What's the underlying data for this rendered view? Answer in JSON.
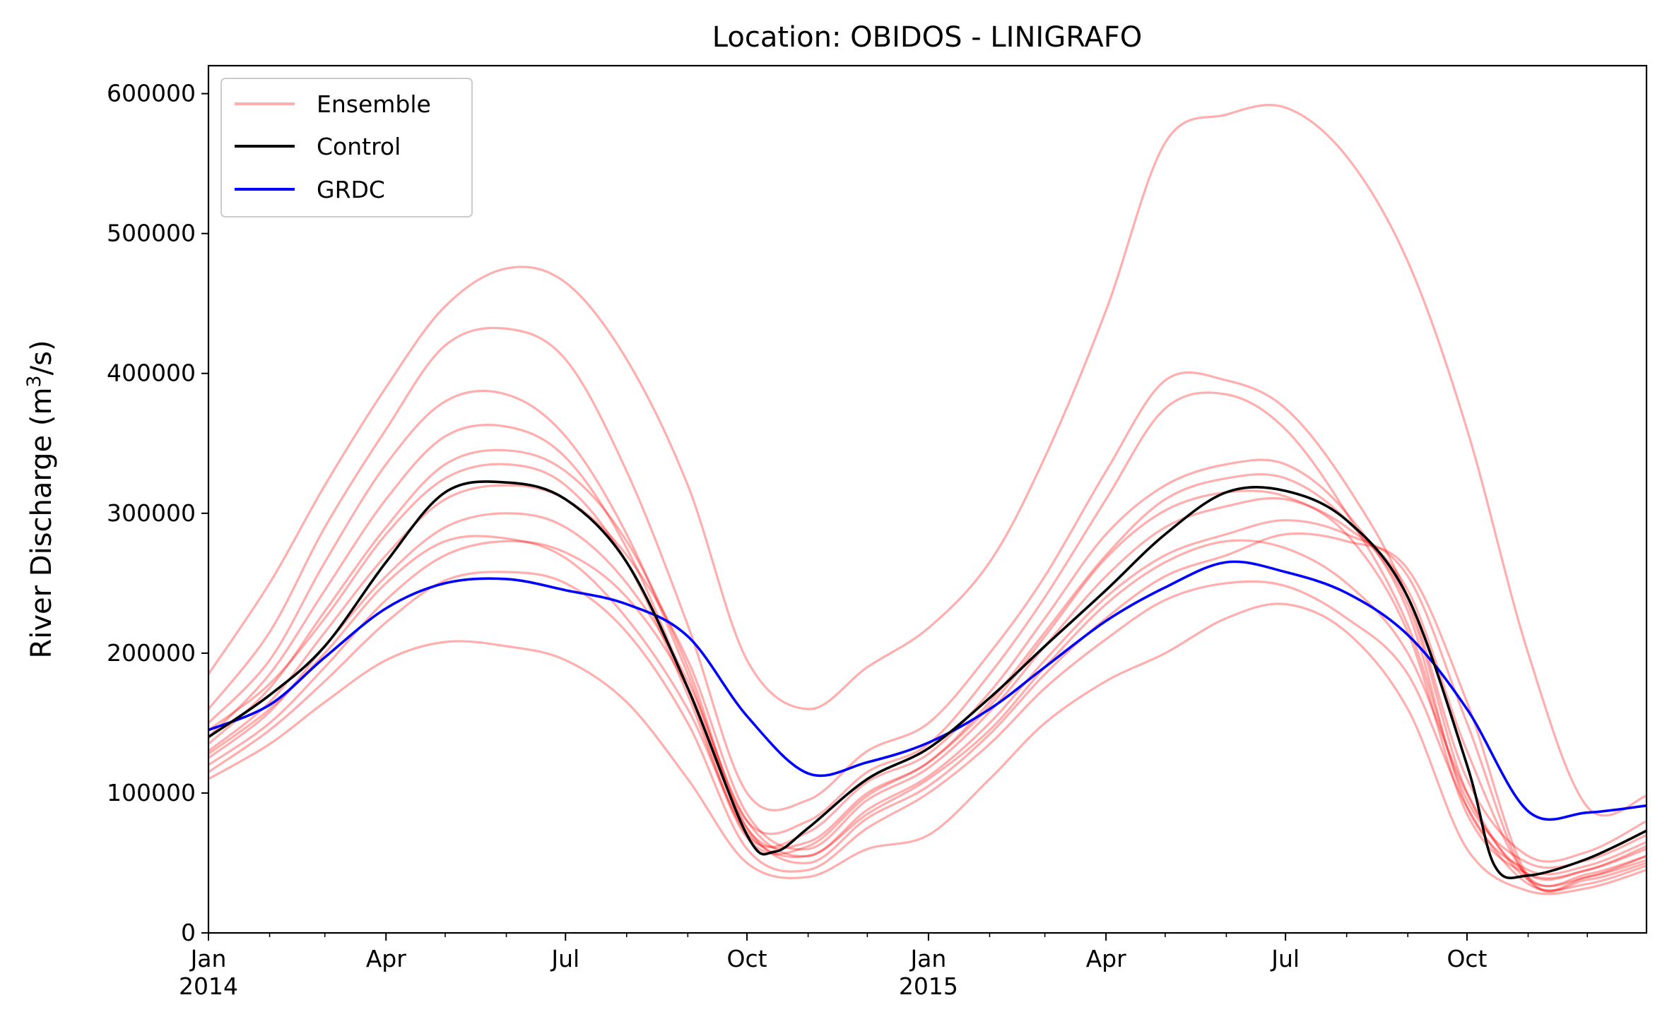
{
  "chart_data": {
    "type": "line",
    "title": "Location: OBIDOS - LINIGRAFO",
    "ylabel_main": "River Discharge (m",
    "ylabel_sup": "3",
    "ylabel_end": "/s)",
    "xlabel": "",
    "ylim": [
      0,
      620000
    ],
    "xlim": [
      "2014-01-01",
      "2015-12-31"
    ],
    "grid": false,
    "legend_position": "top-left",
    "y_ticks": [
      "0",
      "100000",
      "200000",
      "300000",
      "400000",
      "500000",
      "600000"
    ],
    "x_ticks": [
      {
        "label": "Jan",
        "sub": "2014",
        "date": "2014-01-01"
      },
      {
        "label": "Apr",
        "sub": "",
        "date": "2014-04-01"
      },
      {
        "label": "Jul",
        "sub": "",
        "date": "2014-07-01"
      },
      {
        "label": "Oct",
        "sub": "",
        "date": "2014-10-01"
      },
      {
        "label": "Jan",
        "sub": "2015",
        "date": "2015-01-01"
      },
      {
        "label": "Apr",
        "sub": "",
        "date": "2015-04-01"
      },
      {
        "label": "Jul",
        "sub": "",
        "date": "2015-07-01"
      },
      {
        "label": "Oct",
        "sub": "",
        "date": "2015-10-01"
      }
    ],
    "colors": {
      "ensemble": "#ff0000",
      "control": "#000000",
      "grdc": "#0000ff"
    },
    "legend": [
      {
        "label": "Ensemble",
        "color": "#ff0000",
        "opacity": 0.32
      },
      {
        "label": "Control",
        "color": "#000000",
        "opacity": 1
      },
      {
        "label": "GRDC",
        "color": "#0000ff",
        "opacity": 1
      }
    ],
    "series": [
      {
        "name": "Control",
        "x": [
          "2014-01-01",
          "2014-02-01",
          "2014-03-01",
          "2014-04-01",
          "2014-05-01",
          "2014-06-01",
          "2014-07-01",
          "2014-08-01",
          "2014-09-01",
          "2014-10-01",
          "2014-10-15",
          "2014-11-01",
          "2014-12-01",
          "2015-01-01",
          "2015-02-01",
          "2015-03-01",
          "2015-04-01",
          "2015-05-01",
          "2015-06-01",
          "2015-07-01",
          "2015-08-01",
          "2015-09-01",
          "2015-10-01",
          "2015-10-15",
          "2015-11-01",
          "2015-12-01",
          "2015-12-31"
        ],
        "y": [
          140000,
          170000,
          205000,
          265000,
          315000,
          322000,
          310000,
          265000,
          175000,
          70000,
          58000,
          75000,
          110000,
          132000,
          168000,
          205000,
          245000,
          285000,
          315000,
          316000,
          295000,
          240000,
          120000,
          48000,
          41000,
          53000,
          73000
        ]
      },
      {
        "name": "GRDC",
        "x": [
          "2014-01-01",
          "2014-02-01",
          "2014-03-01",
          "2014-04-01",
          "2014-05-01",
          "2014-06-01",
          "2014-07-01",
          "2014-08-01",
          "2014-09-01",
          "2014-10-01",
          "2014-11-01",
          "2014-12-01",
          "2015-01-01",
          "2015-02-01",
          "2015-03-01",
          "2015-04-01",
          "2015-05-01",
          "2015-06-01",
          "2015-07-01",
          "2015-08-01",
          "2015-09-01",
          "2015-10-01",
          "2015-11-01",
          "2015-12-01",
          "2015-12-31"
        ],
        "y": [
          145000,
          163000,
          197000,
          232000,
          250000,
          253000,
          245000,
          235000,
          212000,
          155000,
          114000,
          122000,
          136000,
          160000,
          190000,
          223000,
          247000,
          265000,
          258000,
          243000,
          213000,
          160000,
          87000,
          86000,
          91000
        ]
      },
      {
        "name": "",
        "x": [
          "2014-01-01",
          "2014-02-01",
          "2014-03-01",
          "2014-04-01",
          "2014-05-01",
          "2014-06-01",
          "2014-07-01",
          "2014-08-01",
          "2014-09-01",
          "2014-10-01",
          "2014-11-01",
          "2014-12-01",
          "2015-01-01",
          "2015-02-01",
          "2015-03-01",
          "2015-04-01",
          "2015-05-01",
          "2015-06-01",
          "2015-07-01",
          "2015-08-01",
          "2015-09-01",
          "2015-10-01",
          "2015-11-01",
          "2015-12-01",
          "2015-12-31"
        ],
        "y": [
          185000,
          250000,
          320000,
          390000,
          448000,
          475000,
          465000,
          410000,
          320000,
          195000,
          160000,
          190000,
          218000,
          265000,
          340000,
          445000,
          565000,
          585000,
          590000,
          555000,
          480000,
          360000,
          200000,
          90000,
          98000
        ]
      },
      {
        "name": "",
        "x": [
          "2014-01-01",
          "2014-02-01",
          "2014-03-01",
          "2014-04-01",
          "2014-05-01",
          "2014-06-01",
          "2014-07-01",
          "2014-08-01",
          "2014-09-01",
          "2014-10-01",
          "2014-11-01",
          "2014-12-01",
          "2015-01-01",
          "2015-02-01",
          "2015-03-01",
          "2015-04-01",
          "2015-05-01",
          "2015-06-01",
          "2015-07-01",
          "2015-08-01",
          "2015-09-01",
          "2015-10-01",
          "2015-11-01",
          "2015-12-01",
          "2015-12-31"
        ],
        "y": [
          160000,
          215000,
          290000,
          360000,
          420000,
          432000,
          410000,
          330000,
          220000,
          100000,
          95000,
          130000,
          150000,
          200000,
          255000,
          330000,
          395000,
          395000,
          375000,
          320000,
          240000,
          110000,
          55000,
          58000,
          80000
        ]
      },
      {
        "name": "",
        "x": [
          "2014-01-01",
          "2014-02-01",
          "2014-03-01",
          "2014-04-01",
          "2014-05-01",
          "2014-06-01",
          "2014-07-01",
          "2014-08-01",
          "2014-09-01",
          "2014-10-01",
          "2014-11-01",
          "2014-12-01",
          "2015-01-01",
          "2015-02-01",
          "2015-03-01",
          "2015-04-01",
          "2015-05-01",
          "2015-06-01",
          "2015-07-01",
          "2015-08-01",
          "2015-09-01",
          "2015-10-01",
          "2015-11-01",
          "2015-12-01",
          "2015-12-31"
        ],
        "y": [
          150000,
          195000,
          265000,
          335000,
          380000,
          385000,
          355000,
          285000,
          185000,
          80000,
          80000,
          115000,
          135000,
          185000,
          240000,
          310000,
          375000,
          385000,
          360000,
          300000,
          220000,
          95000,
          50000,
          52000,
          70000
        ]
      },
      {
        "name": "",
        "x": [
          "2014-01-01",
          "2014-02-01",
          "2014-03-01",
          "2014-04-01",
          "2014-05-01",
          "2014-06-01",
          "2014-07-01",
          "2014-08-01",
          "2014-09-01",
          "2014-10-01",
          "2014-11-01",
          "2014-12-01",
          "2015-01-01",
          "2015-02-01",
          "2015-03-01",
          "2015-04-01",
          "2015-05-01",
          "2015-06-01",
          "2015-07-01",
          "2015-08-01",
          "2015-09-01",
          "2015-10-01",
          "2015-11-01",
          "2015-12-01",
          "2015-12-31"
        ],
        "y": [
          140000,
          185000,
          245000,
          310000,
          355000,
          362000,
          340000,
          275000,
          175000,
          70000,
          72000,
          108000,
          128000,
          172000,
          225000,
          285000,
          320000,
          335000,
          335000,
          300000,
          230000,
          90000,
          45000,
          48000,
          65000
        ]
      },
      {
        "name": "",
        "x": [
          "2014-01-01",
          "2014-02-01",
          "2014-03-01",
          "2014-04-01",
          "2014-05-01",
          "2014-06-01",
          "2014-07-01",
          "2014-08-01",
          "2014-09-01",
          "2014-10-01",
          "2014-11-01",
          "2014-12-01",
          "2015-01-01",
          "2015-02-01",
          "2015-03-01",
          "2015-04-01",
          "2015-05-01",
          "2015-06-01",
          "2015-07-01",
          "2015-08-01",
          "2015-09-01",
          "2015-10-01",
          "2015-11-01",
          "2015-12-01",
          "2015-12-31"
        ],
        "y": [
          135000,
          175000,
          230000,
          290000,
          335000,
          345000,
          330000,
          280000,
          190000,
          75000,
          65000,
          100000,
          122000,
          165000,
          215000,
          270000,
          310000,
          325000,
          325000,
          295000,
          235000,
          100000,
          42000,
          45000,
          60000
        ]
      },
      {
        "name": "",
        "x": [
          "2014-01-01",
          "2014-02-01",
          "2014-03-01",
          "2014-04-01",
          "2014-05-01",
          "2014-06-01",
          "2014-07-01",
          "2014-08-01",
          "2014-09-01",
          "2014-10-01",
          "2014-11-01",
          "2014-12-01",
          "2015-01-01",
          "2015-02-01",
          "2015-03-01",
          "2015-04-01",
          "2015-05-01",
          "2015-06-01",
          "2015-07-01",
          "2015-08-01",
          "2015-09-01",
          "2015-10-01",
          "2015-11-01",
          "2015-12-01",
          "2015-12-31"
        ],
        "y": [
          130000,
          165000,
          215000,
          270000,
          310000,
          320000,
          310000,
          270000,
          195000,
          85000,
          60000,
          95000,
          118000,
          158000,
          205000,
          255000,
          290000,
          305000,
          310000,
          290000,
          245000,
          130000,
          40000,
          42000,
          55000
        ]
      },
      {
        "name": "",
        "x": [
          "2014-01-01",
          "2014-02-01",
          "2014-03-01",
          "2014-04-01",
          "2014-05-01",
          "2014-06-01",
          "2014-07-01",
          "2014-08-01",
          "2014-09-01",
          "2014-10-01",
          "2014-11-01",
          "2014-12-01",
          "2015-01-01",
          "2015-02-01",
          "2015-03-01",
          "2015-04-01",
          "2015-05-01",
          "2015-06-01",
          "2015-07-01",
          "2015-08-01",
          "2015-09-01",
          "2015-10-01",
          "2015-11-01",
          "2015-12-01",
          "2015-12-31"
        ],
        "y": [
          125000,
          158000,
          205000,
          255000,
          290000,
          300000,
          290000,
          250000,
          180000,
          80000,
          55000,
          88000,
          112000,
          150000,
          195000,
          240000,
          270000,
          285000,
          295000,
          285000,
          255000,
          150000,
          38000,
          40000,
          52000
        ]
      },
      {
        "name": "",
        "x": [
          "2014-01-01",
          "2014-02-01",
          "2014-03-01",
          "2014-04-01",
          "2014-05-01",
          "2014-06-01",
          "2014-07-01",
          "2014-08-01",
          "2014-09-01",
          "2014-10-01",
          "2014-11-01",
          "2014-12-01",
          "2015-01-01",
          "2015-02-01",
          "2015-03-01",
          "2015-04-01",
          "2015-05-01",
          "2015-06-01",
          "2015-07-01",
          "2015-08-01",
          "2015-09-01",
          "2015-10-01",
          "2015-11-01",
          "2015-12-01",
          "2015-12-31"
        ],
        "y": [
          120000,
          150000,
          190000,
          238000,
          270000,
          280000,
          272000,
          240000,
          175000,
          75000,
          50000,
          82000,
          105000,
          142000,
          185000,
          225000,
          255000,
          270000,
          285000,
          280000,
          260000,
          165000,
          40000,
          38000,
          50000
        ]
      },
      {
        "name": "",
        "x": [
          "2014-01-01",
          "2014-02-01",
          "2014-03-01",
          "2014-04-01",
          "2014-05-01",
          "2014-06-01",
          "2014-07-01",
          "2014-08-01",
          "2014-09-01",
          "2014-10-01",
          "2014-11-01",
          "2014-12-01",
          "2015-01-01",
          "2015-02-01",
          "2015-03-01",
          "2015-04-01",
          "2015-05-01",
          "2015-06-01",
          "2015-07-01",
          "2015-08-01",
          "2015-09-01",
          "2015-10-01",
          "2015-11-01",
          "2015-12-01",
          "2015-12-31"
        ],
        "y": [
          115000,
          145000,
          180000,
          222000,
          252000,
          258000,
          250000,
          215000,
          150000,
          60000,
          45000,
          75000,
          100000,
          135000,
          175000,
          210000,
          238000,
          250000,
          248000,
          225000,
          185000,
          90000,
          35000,
          35000,
          48000
        ]
      },
      {
        "name": "",
        "x": [
          "2014-01-01",
          "2014-02-01",
          "2014-03-01",
          "2014-04-01",
          "2014-05-01",
          "2014-06-01",
          "2014-07-01",
          "2014-08-01",
          "2014-09-01",
          "2014-10-01",
          "2014-11-01",
          "2014-12-01",
          "2015-01-01",
          "2015-02-01",
          "2015-03-01",
          "2015-04-01",
          "2015-05-01",
          "2015-06-01",
          "2015-07-01",
          "2015-08-01",
          "2015-09-01",
          "2015-10-01",
          "2015-11-01",
          "2015-12-01",
          "2015-12-31"
        ],
        "y": [
          110000,
          135000,
          165000,
          195000,
          208000,
          205000,
          195000,
          165000,
          110000,
          50000,
          40000,
          60000,
          70000,
          110000,
          150000,
          180000,
          200000,
          225000,
          235000,
          215000,
          160000,
          60000,
          30000,
          32000,
          45000
        ]
      },
      {
        "name": "",
        "x": [
          "2014-01-01",
          "2014-02-01",
          "2014-03-01",
          "2014-04-01",
          "2014-05-01",
          "2014-06-01",
          "2014-07-01",
          "2014-08-01",
          "2014-09-01",
          "2014-10-01",
          "2014-11-01",
          "2014-12-01",
          "2015-01-01",
          "2015-02-01",
          "2015-03-01",
          "2015-04-01",
          "2015-05-01",
          "2015-06-01",
          "2015-07-01",
          "2015-08-01",
          "2015-09-01",
          "2015-10-01",
          "2015-11-01",
          "2015-12-01",
          "2015-12-31"
        ],
        "y": [
          145000,
          178000,
          225000,
          285000,
          325000,
          335000,
          320000,
          265000,
          170000,
          68000,
          62000,
          98000,
          122000,
          162000,
          212000,
          268000,
          302000,
          315000,
          312000,
          285000,
          215000,
          85000,
          42000,
          45000,
          62000
        ]
      },
      {
        "name": "",
        "x": [
          "2014-01-01",
          "2014-02-01",
          "2014-03-01",
          "2014-04-01",
          "2014-05-01",
          "2014-06-01",
          "2014-07-01",
          "2014-08-01",
          "2014-09-01",
          "2014-10-01",
          "2014-11-01",
          "2014-12-01",
          "2015-01-01",
          "2015-02-01",
          "2015-03-01",
          "2015-04-01",
          "2015-05-01",
          "2015-06-01",
          "2015-07-01",
          "2015-08-01",
          "2015-09-01",
          "2015-10-01",
          "2015-11-01",
          "2015-12-01",
          "2015-12-31"
        ],
        "y": [
          128000,
          160000,
          200000,
          250000,
          280000,
          282000,
          268000,
          225000,
          160000,
          72000,
          55000,
          85000,
          110000,
          145000,
          190000,
          235000,
          265000,
          280000,
          275000,
          250000,
          200000,
          100000,
          38000,
          40000,
          55000
        ]
      }
    ]
  }
}
